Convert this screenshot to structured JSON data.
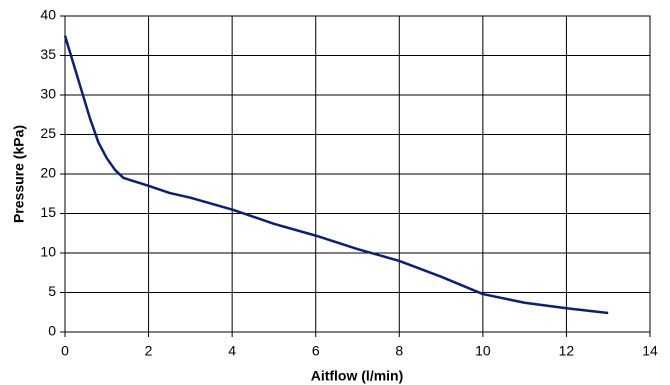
{
  "chart_data": {
    "type": "line",
    "x_label": "Aitflow (l/min)",
    "y_label": "Pressure (kPa)",
    "x": [
      0,
      0.2,
      0.4,
      0.6,
      0.8,
      1,
      1.2,
      1.4,
      2,
      2.5,
      3,
      4,
      5,
      6,
      7,
      8,
      9,
      10,
      11,
      12,
      13
    ],
    "series": [
      {
        "name": "Pressure",
        "color": "#0a1f7a",
        "values": [
          37.5,
          34,
          30.5,
          27,
          24,
          22,
          20.5,
          19.5,
          18.5,
          17.6,
          17,
          15.5,
          13.7,
          12.2,
          10.5,
          9,
          7,
          4.8,
          3.7,
          3,
          2.4
        ]
      }
    ],
    "xlim": [
      0,
      14
    ],
    "xticks": [
      0,
      2,
      4,
      6,
      8,
      10,
      12,
      14
    ],
    "ylim": [
      0,
      40
    ],
    "yticks": [
      0,
      5,
      10,
      15,
      20,
      25,
      30,
      35,
      40
    ],
    "grid": true
  }
}
